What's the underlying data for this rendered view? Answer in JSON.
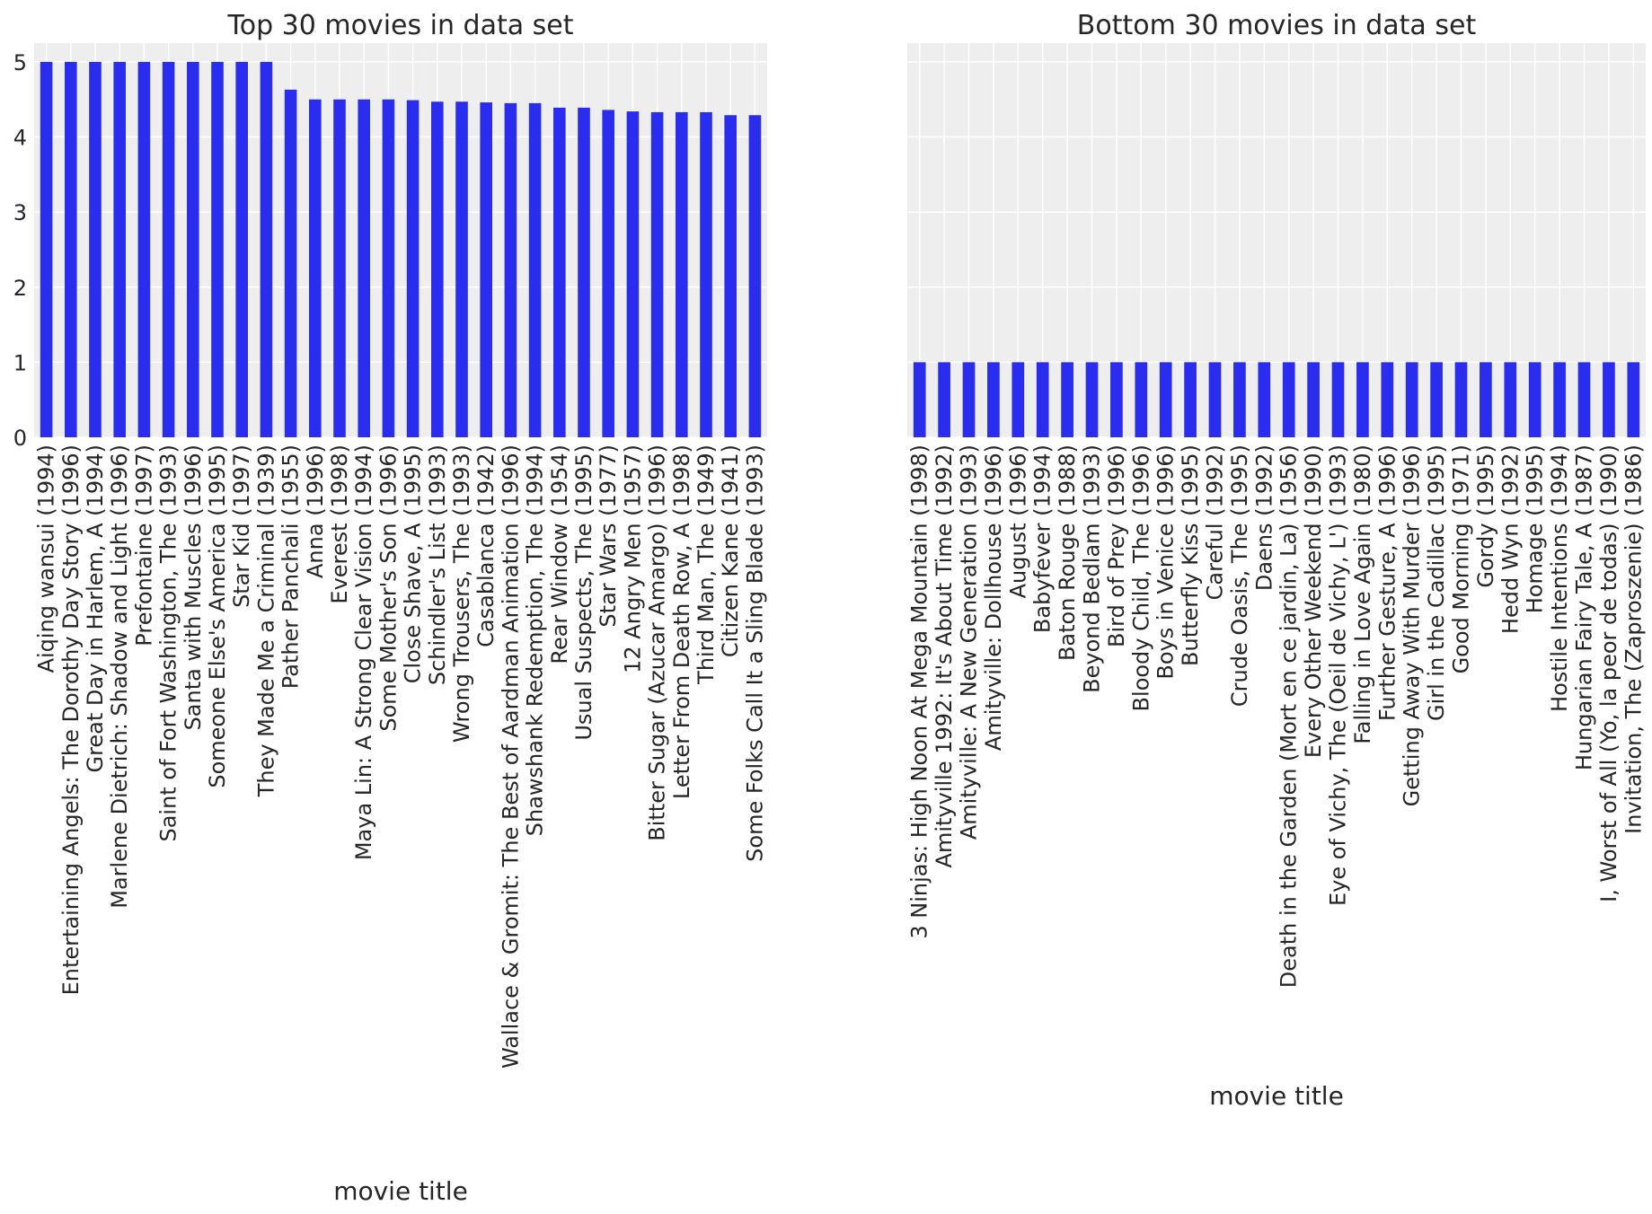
{
  "chart_data": [
    {
      "type": "bar",
      "title": "Top 30 movies in data set",
      "xlabel": "movie title",
      "ylabel": "",
      "ylim": [
        0,
        5.25
      ],
      "yticks": [
        0,
        1,
        2,
        3,
        4,
        5
      ],
      "grid": true,
      "legend": "none",
      "bar_color": "#2a2ded",
      "background_color": "#eeeeee",
      "categories": [
        "Aiqing wansui (1994)",
        "Entertaining Angels: The Dorothy Day Story (1996)",
        "Great Day in Harlem, A (1994)",
        "Marlene Dietrich: Shadow and Light (1996)",
        "Prefontaine (1997)",
        "Saint of Fort Washington, The (1993)",
        "Santa with Muscles (1996)",
        "Someone Else's America (1995)",
        "Star Kid (1997)",
        "They Made Me a Criminal (1939)",
        "Pather Panchali (1955)",
        "Anna (1996)",
        "Everest (1998)",
        "Maya Lin: A Strong Clear Vision (1994)",
        "Some Mother's Son (1996)",
        "Close Shave, A (1995)",
        "Schindler's List (1993)",
        "Wrong Trousers, The (1993)",
        "Casablanca (1942)",
        "Wallace & Gromit: The Best of Aardman Animation (1996)",
        "Shawshank Redemption, The (1994)",
        "Rear Window (1954)",
        "Usual Suspects, The (1995)",
        "Star Wars (1977)",
        "12 Angry Men (1957)",
        "Bitter Sugar (Azucar Amargo) (1996)",
        "Letter From Death Row, A (1998)",
        "Third Man, The (1949)",
        "Citizen Kane (1941)",
        "Some Folks Call It a Sling Blade (1993)"
      ],
      "values": [
        5,
        5,
        5,
        5,
        5,
        5,
        5,
        5,
        5,
        5,
        4.63,
        4.5,
        4.5,
        4.5,
        4.5,
        4.49,
        4.47,
        4.47,
        4.46,
        4.45,
        4.45,
        4.39,
        4.39,
        4.36,
        4.34,
        4.33,
        4.33,
        4.33,
        4.29,
        4.29
      ]
    },
    {
      "type": "bar",
      "title": "Bottom 30 movies in data set",
      "xlabel": "movie title",
      "ylabel": "",
      "ylim": [
        0,
        5.25
      ],
      "yticks": [
        0,
        1,
        2,
        3,
        4,
        5
      ],
      "shared_y": true,
      "grid": true,
      "legend": "none",
      "bar_color": "#2a2ded",
      "background_color": "#eeeeee",
      "categories": [
        "3 Ninjas: High Noon At Mega Mountain (1998)",
        "Amityville 1992: It's About Time (1992)",
        "Amityville: A New Generation (1993)",
        "Amityville: Dollhouse (1996)",
        "August (1996)",
        "Babyfever (1994)",
        "Baton Rouge (1988)",
        "Beyond Bedlam (1993)",
        "Bird of Prey (1996)",
        "Bloody Child, The (1996)",
        "Boys in Venice (1996)",
        "Butterfly Kiss (1995)",
        "Careful (1992)",
        "Crude Oasis, The (1995)",
        "Daens (1992)",
        "Death in the Garden (Mort en ce jardin, La) (1956)",
        "Every Other Weekend (1990)",
        "Eye of Vichy, The (Oeil de Vichy, L') (1993)",
        "Falling in Love Again (1980)",
        "Further Gesture, A (1996)",
        "Getting Away With Murder (1996)",
        "Girl in the Cadillac (1995)",
        "Good Morning (1971)",
        "Gordy (1995)",
        "Hedd Wyn (1992)",
        "Homage (1995)",
        "Hostile Intentions (1994)",
        "Hungarian Fairy Tale, A (1987)",
        "I, Worst of All (Yo, la peor de todas) (1990)",
        "Invitation, The (Zaproszenie) (1986)"
      ],
      "values": [
        1,
        1,
        1,
        1,
        1,
        1,
        1,
        1,
        1,
        1,
        1,
        1,
        1,
        1,
        1,
        1,
        1,
        1,
        1,
        1,
        1,
        1,
        1,
        1,
        1,
        1,
        1,
        1,
        1,
        1
      ]
    }
  ]
}
